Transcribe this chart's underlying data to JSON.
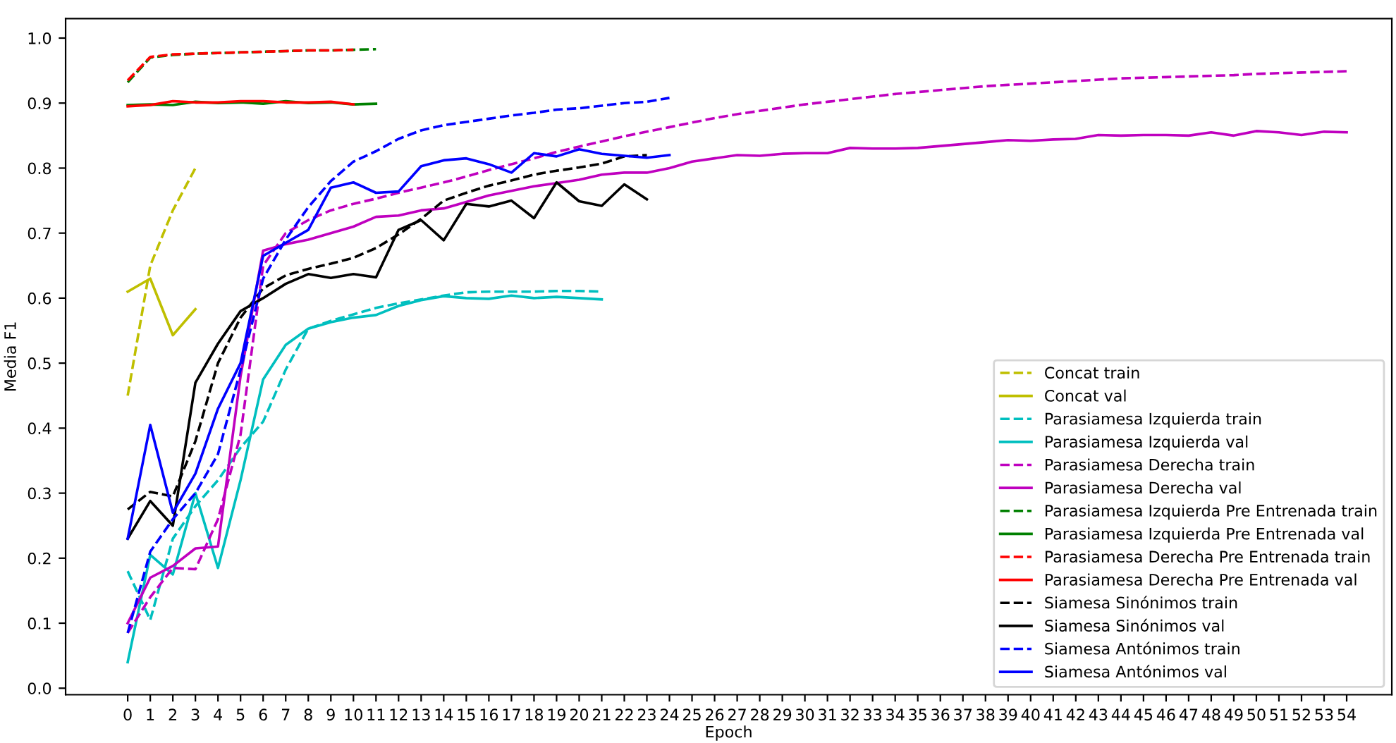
{
  "chart_data": {
    "type": "line",
    "xlabel": "Epoch",
    "ylabel": "Media F1",
    "xlim": [
      -2.75,
      56
    ],
    "ylim": [
      -0.01,
      1.03
    ],
    "xticks": [
      0,
      1,
      2,
      3,
      4,
      5,
      6,
      7,
      8,
      9,
      10,
      11,
      12,
      13,
      14,
      15,
      16,
      17,
      18,
      19,
      20,
      21,
      22,
      23,
      24,
      25,
      26,
      27,
      28,
      29,
      30,
      31,
      32,
      33,
      34,
      35,
      36,
      37,
      38,
      39,
      40,
      41,
      42,
      43,
      44,
      45,
      46,
      47,
      48,
      49,
      50,
      51,
      52,
      53,
      54
    ],
    "yticks": [
      {
        "value": 0,
        "label": "0.0"
      },
      0.1,
      0.2,
      0.3,
      0.4,
      0.5,
      0.6,
      0.7,
      0.8,
      0.9,
      {
        "value": 1,
        "label": "1.0"
      }
    ],
    "grid": false,
    "legend": "bottom right",
    "marker": "none",
    "series": [
      {
        "name": "Concat train",
        "color": "#bfbf00",
        "line_style": "dashed",
        "x": [
          0,
          1,
          2,
          3
        ],
        "values": [
          0.45,
          0.65,
          0.735,
          0.8
        ]
      },
      {
        "name": "Concat val",
        "color": "#bfbf00",
        "line_style": "solid",
        "x": [
          0,
          1,
          2,
          3
        ],
        "values": [
          0.61,
          0.63,
          0.543,
          0.583
        ]
      },
      {
        "name": "Parasiamesa Izquierda train",
        "color": "#00bfbf",
        "line_style": "dashed",
        "x": [
          0,
          1,
          2,
          3,
          4,
          5,
          6,
          7,
          8,
          9,
          10,
          11,
          12,
          13,
          14,
          15,
          16,
          17,
          18,
          19,
          20,
          21
        ],
        "values": [
          0.18,
          0.105,
          0.23,
          0.28,
          0.32,
          0.37,
          0.41,
          0.49,
          0.553,
          0.565,
          0.575,
          0.585,
          0.592,
          0.598,
          0.604,
          0.609,
          0.61,
          0.61,
          0.61,
          0.611,
          0.611,
          0.61
        ]
      },
      {
        "name": "Parasiamesa Izquierda val",
        "color": "#00bfbf",
        "line_style": "solid",
        "x": [
          0,
          1,
          2,
          3,
          4,
          5,
          6,
          7,
          8,
          9,
          10,
          11,
          12,
          13,
          14,
          15,
          16,
          17,
          18,
          19,
          20,
          21
        ],
        "values": [
          0.04,
          0.205,
          0.175,
          0.3,
          0.185,
          0.32,
          0.475,
          0.528,
          0.553,
          0.563,
          0.57,
          0.574,
          0.588,
          0.597,
          0.603,
          0.6,
          0.599,
          0.604,
          0.6,
          0.602,
          0.6,
          0.598
        ]
      },
      {
        "name": "Parasiamesa Derecha train",
        "color": "#bf00bf",
        "line_style": "dashed",
        "x": [
          0,
          1,
          2,
          3,
          4,
          5,
          6,
          7,
          8,
          9,
          10,
          11,
          12,
          13,
          14,
          15,
          16,
          17,
          18,
          19,
          20,
          21,
          22,
          23,
          24,
          25,
          26,
          27,
          28,
          29,
          30,
          31,
          32,
          33,
          34,
          35,
          36,
          37,
          38,
          39,
          40,
          41,
          42,
          43,
          44,
          45,
          46,
          47,
          48,
          49,
          50,
          51,
          52,
          53,
          54
        ],
        "values": [
          0.085,
          0.14,
          0.185,
          0.183,
          0.26,
          0.39,
          0.65,
          0.7,
          0.72,
          0.735,
          0.745,
          0.753,
          0.762,
          0.77,
          0.778,
          0.787,
          0.797,
          0.806,
          0.815,
          0.825,
          0.833,
          0.841,
          0.849,
          0.856,
          0.863,
          0.87,
          0.877,
          0.883,
          0.888,
          0.893,
          0.898,
          0.902,
          0.906,
          0.91,
          0.914,
          0.917,
          0.92,
          0.923,
          0.926,
          0.928,
          0.93,
          0.932,
          0.934,
          0.936,
          0.938,
          0.939,
          0.94,
          0.941,
          0.942,
          0.943,
          0.945,
          0.946,
          0.947,
          0.948,
          0.949
        ]
      },
      {
        "name": "Parasiamesa Derecha val",
        "color": "#bf00bf",
        "line_style": "solid",
        "x": [
          0,
          1,
          2,
          3,
          4,
          5,
          6,
          7,
          8,
          9,
          10,
          11,
          12,
          13,
          14,
          15,
          16,
          17,
          18,
          19,
          20,
          21,
          22,
          23,
          24,
          25,
          26,
          27,
          28,
          29,
          30,
          31,
          32,
          33,
          34,
          35,
          36,
          37,
          38,
          39,
          40,
          41,
          42,
          43,
          44,
          45,
          46,
          47,
          48,
          49,
          50,
          51,
          52,
          53,
          54
        ],
        "values": [
          0.1,
          0.17,
          0.188,
          0.215,
          0.218,
          0.48,
          0.673,
          0.683,
          0.69,
          0.7,
          0.71,
          0.725,
          0.727,
          0.735,
          0.738,
          0.748,
          0.758,
          0.765,
          0.772,
          0.777,
          0.782,
          0.79,
          0.793,
          0.793,
          0.8,
          0.81,
          0.815,
          0.82,
          0.819,
          0.822,
          0.823,
          0.823,
          0.831,
          0.83,
          0.83,
          0.831,
          0.834,
          0.837,
          0.84,
          0.843,
          0.842,
          0.844,
          0.845,
          0.851,
          0.85,
          0.851,
          0.851,
          0.85,
          0.855,
          0.85,
          0.857,
          0.855,
          0.851,
          0.856,
          0.855
        ]
      },
      {
        "name": "Parasiamesa Izquierda Pre Entrenada train",
        "color": "#008000",
        "line_style": "dashed",
        "x": [
          0,
          1,
          2,
          3,
          4,
          5,
          6,
          7,
          8,
          9,
          10,
          11
        ],
        "values": [
          0.932,
          0.97,
          0.974,
          0.976,
          0.977,
          0.978,
          0.979,
          0.98,
          0.981,
          0.981,
          0.982,
          0.983
        ]
      },
      {
        "name": "Parasiamesa Izquierda Pre Entrenada val",
        "color": "#008000",
        "line_style": "solid",
        "x": [
          0,
          1,
          2,
          3,
          4,
          5,
          6,
          7,
          8,
          9,
          10,
          11
        ],
        "values": [
          0.897,
          0.898,
          0.897,
          0.902,
          0.9,
          0.901,
          0.899,
          0.903,
          0.9,
          0.901,
          0.898,
          0.899
        ]
      },
      {
        "name": "Parasiamesa Derecha Pre Entrenada train",
        "color": "#ff0000",
        "line_style": "dashed",
        "x": [
          0,
          1,
          2,
          3,
          4,
          5,
          6,
          7,
          8,
          9,
          10
        ],
        "values": [
          0.935,
          0.971,
          0.975,
          0.976,
          0.977,
          0.978,
          0.979,
          0.98,
          0.981,
          0.981,
          0.982
        ]
      },
      {
        "name": "Parasiamesa Derecha Pre Entrenada val",
        "color": "#ff0000",
        "line_style": "solid",
        "x": [
          0,
          1,
          2,
          3,
          4,
          5,
          6,
          7,
          8,
          9,
          10
        ],
        "values": [
          0.895,
          0.897,
          0.903,
          0.901,
          0.901,
          0.903,
          0.903,
          0.901,
          0.901,
          0.902,
          0.898
        ]
      },
      {
        "name": "Siamesa Sinónimos train",
        "color": "#000000",
        "line_style": "dashed",
        "x": [
          0,
          1,
          2,
          3,
          4,
          5,
          6,
          7,
          8,
          9,
          10,
          11,
          12,
          13,
          14,
          15,
          16,
          17,
          18,
          19,
          20,
          21,
          22,
          23
        ],
        "values": [
          0.275,
          0.302,
          0.295,
          0.38,
          0.5,
          0.57,
          0.615,
          0.635,
          0.645,
          0.653,
          0.662,
          0.677,
          0.698,
          0.722,
          0.75,
          0.762,
          0.773,
          0.781,
          0.79,
          0.796,
          0.801,
          0.807,
          0.818,
          0.82
        ]
      },
      {
        "name": "Siamesa Sinónimos val",
        "color": "#000000",
        "line_style": "solid",
        "x": [
          0,
          1,
          2,
          3,
          4,
          5,
          6,
          7,
          8,
          9,
          10,
          11,
          12,
          13,
          14,
          15,
          16,
          17,
          18,
          19,
          20,
          21,
          22,
          23
        ],
        "values": [
          0.23,
          0.288,
          0.25,
          0.47,
          0.53,
          0.58,
          0.6,
          0.622,
          0.637,
          0.631,
          0.637,
          0.632,
          0.705,
          0.72,
          0.689,
          0.745,
          0.741,
          0.75,
          0.723,
          0.778,
          0.749,
          0.742,
          0.775,
          0.752
        ]
      },
      {
        "name": "Siamesa Antónimos train",
        "color": "#0000ff",
        "line_style": "dashed",
        "x": [
          0,
          1,
          2,
          3,
          4,
          5,
          6,
          7,
          8,
          9,
          10,
          11,
          12,
          13,
          14,
          15,
          16,
          17,
          18,
          19,
          20,
          21,
          22,
          23,
          24
        ],
        "values": [
          0.085,
          0.21,
          0.26,
          0.3,
          0.36,
          0.49,
          0.63,
          0.69,
          0.74,
          0.78,
          0.81,
          0.826,
          0.845,
          0.858,
          0.866,
          0.871,
          0.876,
          0.881,
          0.885,
          0.89,
          0.892,
          0.896,
          0.9,
          0.902,
          0.908
        ]
      },
      {
        "name": "Siamesa Antónimos val",
        "color": "#0000ff",
        "line_style": "solid",
        "x": [
          0,
          1,
          2,
          3,
          4,
          5,
          6,
          7,
          8,
          9,
          10,
          11,
          12,
          13,
          14,
          15,
          16,
          17,
          18,
          19,
          20,
          21,
          22,
          23,
          24
        ],
        "values": [
          0.23,
          0.405,
          0.27,
          0.33,
          0.43,
          0.5,
          0.665,
          0.685,
          0.705,
          0.77,
          0.778,
          0.762,
          0.764,
          0.803,
          0.812,
          0.815,
          0.806,
          0.793,
          0.823,
          0.818,
          0.829,
          0.822,
          0.819,
          0.816,
          0.82
        ]
      }
    ]
  }
}
